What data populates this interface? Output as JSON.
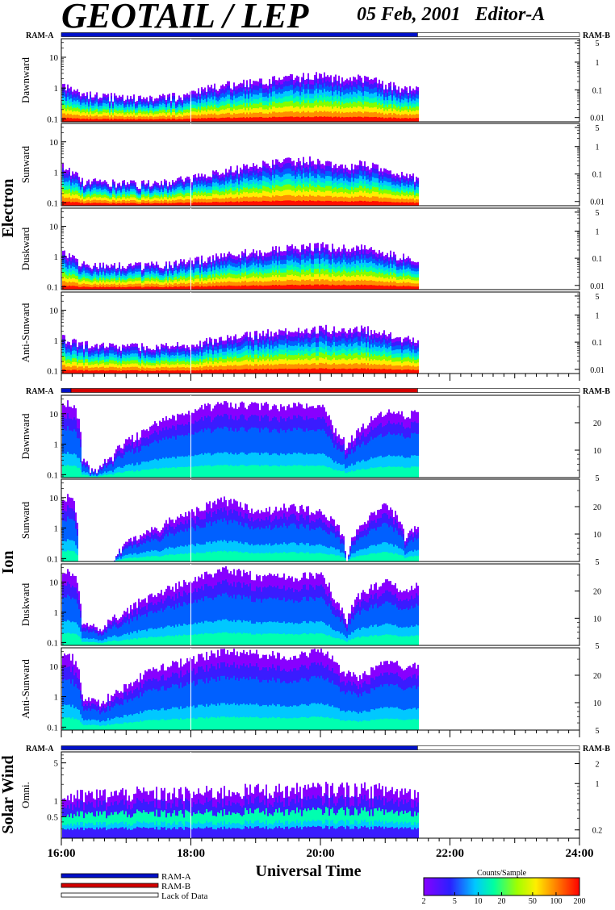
{
  "header": {
    "title": "GEOTAIL / LEP",
    "date": "05 Feb, 2001",
    "editor": "Editor-A"
  },
  "ram_labels": {
    "a": "RAM-A",
    "b": "RAM-B"
  },
  "groups": [
    {
      "name": "Electron",
      "ram_b_ticks": [
        {
          "label": "5",
          "value": 5
        },
        {
          "label": "1",
          "value": 1
        },
        {
          "label": "0.1",
          "value": 0.1
        },
        {
          "label": "0.01",
          "value": 0.01
        }
      ],
      "ram_b_range": [
        0.007,
        7
      ],
      "ram_mode_bar": [
        {
          "from": 16.0,
          "to": 21.5,
          "mode": "RAM-A"
        },
        {
          "from": 21.5,
          "to": 24.0,
          "mode": "Lack of Data"
        }
      ],
      "panels": [
        "Dawnward",
        "Sunward",
        "Duskward",
        "Anti-Sunward"
      ]
    },
    {
      "name": "Ion",
      "ram_b_ticks": [
        {
          "label": "20",
          "value": 20
        },
        {
          "label": "10",
          "value": 10
        },
        {
          "label": "5",
          "value": 5
        }
      ],
      "ram_b_range": [
        5,
        40
      ],
      "ram_mode_bar": [
        {
          "from": 16.0,
          "to": 16.15,
          "mode": "RAM-A"
        },
        {
          "from": 16.15,
          "to": 21.5,
          "mode": "RAM-B"
        },
        {
          "from": 21.5,
          "to": 24.0,
          "mode": "Lack of Data"
        }
      ],
      "panels": [
        "Dawnward",
        "Sunward",
        "Duskward",
        "Anti-Sunward"
      ]
    },
    {
      "name": "Solar Wind",
      "ram_b_ticks": [
        {
          "label": "2",
          "value": 2
        },
        {
          "label": "1",
          "value": 1
        },
        {
          "label": "0.2",
          "value": 0.2
        }
      ],
      "ram_b_range": [
        0.15,
        3
      ],
      "ram_mode_bar": [
        {
          "from": 16.0,
          "to": 21.5,
          "mode": "RAM-A"
        },
        {
          "from": 21.5,
          "to": 24.0,
          "mode": "Lack of Data"
        }
      ],
      "panels": [
        "Omni."
      ]
    }
  ],
  "legend": {
    "items": [
      {
        "label": "RAM-A",
        "color": "#0010c8"
      },
      {
        "label": "RAM-B",
        "color": "#d40000"
      },
      {
        "label": "Lack of Data",
        "color": "#ffffff"
      }
    ]
  },
  "colorbar": {
    "title": "Counts/Sample",
    "ticks": [
      {
        "label": "2",
        "value": 2
      },
      {
        "label": "5",
        "value": 5
      },
      {
        "label": "10",
        "value": 10
      },
      {
        "label": "20",
        "value": 20
      },
      {
        "label": "50",
        "value": 50
      },
      {
        "label": "100",
        "value": 100
      },
      {
        "label": "200",
        "value": 200
      }
    ],
    "range": [
      2,
      200
    ],
    "scale": "log"
  },
  "chart_data": [
    {
      "type": "heatmap",
      "group": "Electron",
      "panel": "Dawnward",
      "xlabel": "Universal Time",
      "xlim": [
        16,
        24
      ],
      "x_ticks": [
        "16:00",
        "18:00",
        "20:00",
        "22:00",
        "24:00"
      ],
      "ylim": [
        0.08,
        40
      ],
      "yscale": "log",
      "y_ticks": [
        {
          "label": "10",
          "value": 10
        },
        {
          "label": "1",
          "value": 1
        },
        {
          "label": "0.1",
          "value": 0.1
        }
      ],
      "data_end_hour": 21.5,
      "envelope_hours": [
        16.0,
        16.3,
        17.0,
        17.5,
        18.0,
        18.5,
        19.0,
        19.5,
        20.0,
        20.3,
        20.6,
        21.0,
        21.5
      ],
      "envelope_top": [
        1.2,
        0.6,
        0.45,
        0.45,
        0.6,
        1.2,
        1.5,
        2.0,
        2.5,
        1.8,
        2.2,
        1.2,
        0.8
      ],
      "peak_hours_range": [
        19.9,
        21.2
      ]
    },
    {
      "type": "heatmap",
      "group": "Electron",
      "panel": "Sunward",
      "xlim": [
        16,
        24
      ],
      "ylim": [
        0.08,
        40
      ],
      "yscale": "log",
      "y_ticks": [
        {
          "label": "10",
          "value": 10
        },
        {
          "label": "1",
          "value": 1
        },
        {
          "label": "0.1",
          "value": 0.1
        }
      ],
      "data_end_hour": 21.5,
      "envelope_hours": [
        16.0,
        16.3,
        17.0,
        17.5,
        18.0,
        18.5,
        19.0,
        19.5,
        20.0,
        20.3,
        20.6,
        21.0,
        21.5
      ],
      "envelope_top": [
        1.5,
        0.5,
        0.4,
        0.4,
        0.6,
        1.0,
        1.6,
        2.2,
        2.5,
        1.3,
        2.0,
        1.0,
        0.6
      ]
    },
    {
      "type": "heatmap",
      "group": "Electron",
      "panel": "Duskward",
      "xlim": [
        16,
        24
      ],
      "ylim": [
        0.08,
        40
      ],
      "yscale": "log",
      "y_ticks": [
        {
          "label": "10",
          "value": 10
        },
        {
          "label": "1",
          "value": 1
        },
        {
          "label": "0.1",
          "value": 0.1
        }
      ],
      "data_end_hour": 21.5,
      "envelope_hours": [
        16.0,
        16.3,
        17.0,
        17.5,
        18.0,
        18.5,
        19.0,
        19.5,
        20.0,
        20.3,
        20.6,
        21.0,
        21.5
      ],
      "envelope_top": [
        1.3,
        0.5,
        0.45,
        0.5,
        0.7,
        1.0,
        1.4,
        1.8,
        2.2,
        1.8,
        2.0,
        1.2,
        0.7
      ]
    },
    {
      "type": "heatmap",
      "group": "Electron",
      "panel": "Anti-Sunward",
      "xlim": [
        16,
        24
      ],
      "ylim": [
        0.08,
        40
      ],
      "yscale": "log",
      "y_ticks": [
        {
          "label": "10",
          "value": 10
        },
        {
          "label": "1",
          "value": 1
        },
        {
          "label": "0.1",
          "value": 0.1
        }
      ],
      "data_end_hour": 21.5,
      "envelope_hours": [
        16.0,
        16.3,
        17.0,
        17.5,
        18.0,
        18.5,
        19.0,
        19.5,
        20.0,
        20.3,
        20.6,
        21.0,
        21.5
      ],
      "envelope_top": [
        1.2,
        0.7,
        0.6,
        0.6,
        0.7,
        1.1,
        1.5,
        2.0,
        2.4,
        2.2,
        2.4,
        1.5,
        0.9
      ]
    },
    {
      "type": "heatmap",
      "group": "Ion",
      "panel": "Dawnward",
      "xlim": [
        16,
        24
      ],
      "ylim": [
        0.08,
        40
      ],
      "yscale": "log",
      "y_ticks": [
        {
          "label": "10",
          "value": 10
        },
        {
          "label": "1",
          "value": 1
        },
        {
          "label": "0.1",
          "value": 0.1
        }
      ],
      "data_end_hour": 21.5,
      "envelope_hours": [
        16.0,
        16.15,
        16.3,
        16.5,
        16.8,
        17.2,
        17.6,
        18.0,
        18.5,
        19.0,
        19.5,
        20.0,
        20.2,
        20.4,
        20.7,
        21.0,
        21.3,
        21.5
      ],
      "envelope_top": [
        20,
        20,
        0.3,
        0.1,
        0.4,
        2,
        6,
        12,
        20,
        18,
        16,
        20,
        3,
        0.6,
        4,
        12,
        8,
        10
      ]
    },
    {
      "type": "heatmap",
      "group": "Ion",
      "panel": "Sunward",
      "xlim": [
        16,
        24
      ],
      "ylim": [
        0.08,
        40
      ],
      "yscale": "log",
      "y_ticks": [
        {
          "label": "10",
          "value": 10
        },
        {
          "label": "1",
          "value": 1
        },
        {
          "label": "0.1",
          "value": 0.1
        }
      ],
      "data_end_hour": 21.5,
      "envelope_hours": [
        16.0,
        16.15,
        16.25,
        16.8,
        17.0,
        17.5,
        18.0,
        18.5,
        19.0,
        19.5,
        20.0,
        20.2,
        20.4,
        20.7,
        21.0,
        21.3,
        21.5
      ],
      "envelope_top": [
        10,
        10,
        0.05,
        0.05,
        0.3,
        1.0,
        3,
        8,
        3,
        5,
        3,
        1.5,
        0.05,
        1.5,
        5,
        0.3,
        1.2
      ]
    },
    {
      "type": "heatmap",
      "group": "Ion",
      "panel": "Duskward",
      "xlim": [
        16,
        24
      ],
      "ylim": [
        0.08,
        40
      ],
      "yscale": "log",
      "y_ticks": [
        {
          "label": "10",
          "value": 10
        },
        {
          "label": "1",
          "value": 1
        },
        {
          "label": "0.1",
          "value": 0.1
        }
      ],
      "data_end_hour": 21.5,
      "envelope_hours": [
        16.0,
        16.15,
        16.3,
        16.6,
        17.0,
        17.5,
        18.0,
        18.5,
        19.0,
        19.5,
        20.0,
        20.2,
        20.4,
        20.7,
        21.0,
        21.3,
        21.5
      ],
      "envelope_top": [
        20,
        20,
        0.5,
        0.2,
        1.0,
        4,
        10,
        25,
        15,
        14,
        18,
        2,
        0.5,
        5,
        10,
        4,
        8
      ]
    },
    {
      "type": "heatmap",
      "group": "Ion",
      "panel": "Anti-Sunward",
      "xlim": [
        16,
        24
      ],
      "ylim": [
        0.08,
        40
      ],
      "yscale": "log",
      "y_ticks": [
        {
          "label": "10",
          "value": 10
        },
        {
          "label": "1",
          "value": 1
        },
        {
          "label": "0.1",
          "value": 0.1
        }
      ],
      "data_end_hour": 21.5,
      "envelope_hours": [
        16.0,
        16.15,
        16.3,
        16.6,
        17.0,
        17.5,
        18.0,
        18.5,
        19.0,
        19.5,
        20.0,
        20.3,
        20.6,
        21.0,
        21.3,
        21.5
      ],
      "envelope_top": [
        20,
        20,
        1.0,
        0.5,
        2,
        8,
        15,
        30,
        25,
        20,
        30,
        6,
        4,
        12,
        10,
        12
      ]
    },
    {
      "type": "heatmap",
      "group": "Solar Wind",
      "panel": "Omni.",
      "xlim": [
        16,
        24
      ],
      "ylim": [
        0.2,
        8
      ],
      "yscale": "log",
      "y_ticks": [
        {
          "label": "5",
          "value": 5
        },
        {
          "label": "1",
          "value": 1
        },
        {
          "label": "0.5",
          "value": 0.5
        }
      ],
      "data_end_hour": 21.5,
      "envelope_hours": [
        16.0,
        16.5,
        17.0,
        17.5,
        18.0,
        18.5,
        19.0,
        19.5,
        20.0,
        20.5,
        21.0,
        21.5
      ],
      "envelope_top": [
        1.1,
        1.2,
        1.3,
        1.3,
        1.3,
        1.4,
        1.5,
        1.5,
        1.6,
        1.6,
        1.5,
        1.3
      ]
    }
  ]
}
